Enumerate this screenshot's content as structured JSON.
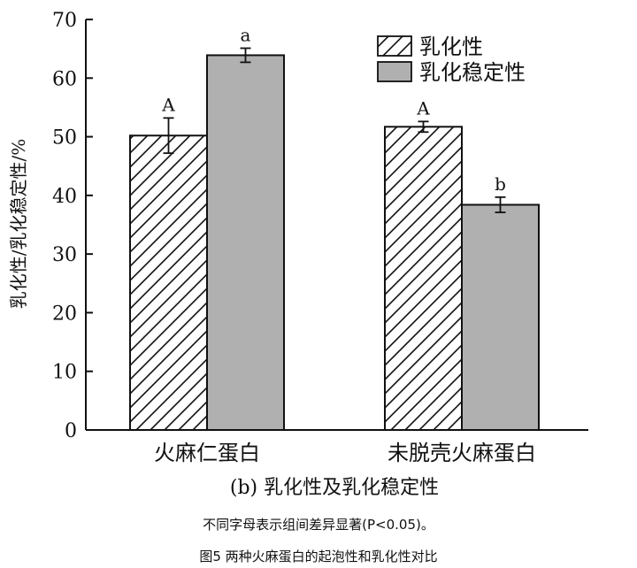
{
  "chart_data": {
    "type": "bar",
    "subtitle": "(b) 乳化性及乳化稳定性",
    "ylabel": "乳化性/乳化稳定性/%",
    "ylim": [
      0,
      70
    ],
    "yticks": [
      "0",
      "10",
      "20",
      "30",
      "40",
      "50",
      "60",
      "70"
    ],
    "categories": [
      "火麻仁蛋白",
      "未脱壳火麻蛋白"
    ],
    "legend_position": "top-right",
    "series": [
      {
        "name": "乳化性",
        "fill": "hatch",
        "color": "#ffffff",
        "values": [
          50.2,
          51.7
        ],
        "errors": [
          3.0,
          0.9
        ],
        "labels": [
          "A",
          "A"
        ]
      },
      {
        "name": "乳化稳定性",
        "fill": "solid",
        "color": "#b0b0b0",
        "values": [
          63.9,
          38.4
        ],
        "errors": [
          1.2,
          1.3
        ],
        "labels": [
          "a",
          "b"
        ]
      }
    ]
  },
  "notes": {
    "significance": "不同字母表示组间差异显著(P<0.05)。",
    "caption": "图5 两种火麻蛋白的起泡性和乳化性对比"
  }
}
